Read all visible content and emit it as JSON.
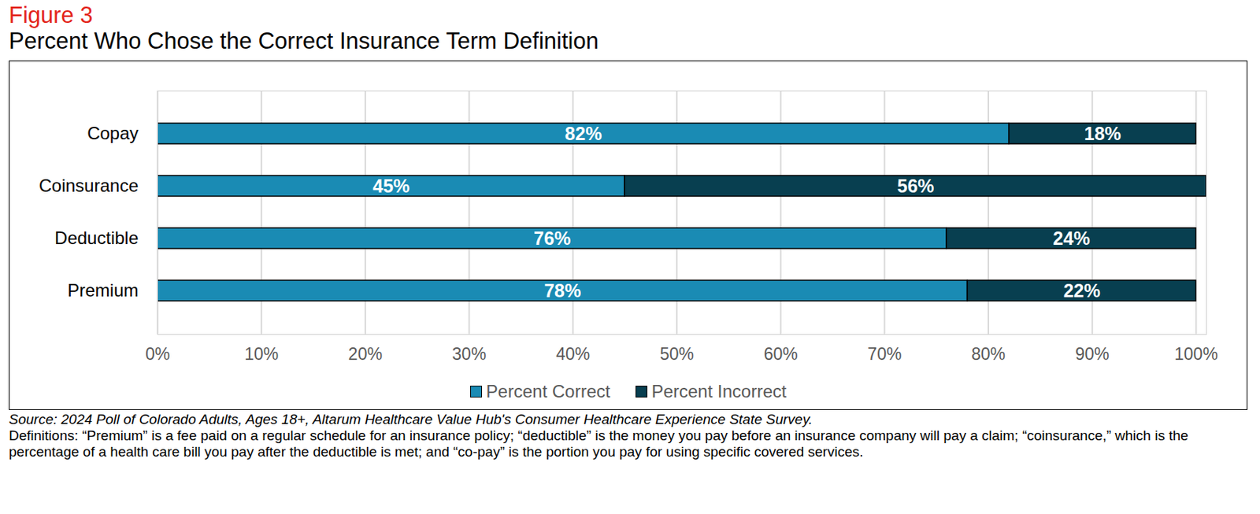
{
  "chart_data": {
    "type": "bar",
    "title": "Figure 3",
    "subtitle": "Percent Who Chose the Correct Insurance Term Definition",
    "orientation": "horizontal",
    "stacked": true,
    "data_labels": true,
    "grid": true,
    "legend": "bottom",
    "categories": [
      "Copay",
      "Coinsurance",
      "Deductible",
      "Premium"
    ],
    "series": [
      {
        "name": "Percent Correct",
        "color": "#1a8bb4",
        "values": [
          82,
          45,
          76,
          78
        ],
        "value_labels": [
          "82%",
          "45%",
          "76%",
          "78%"
        ]
      },
      {
        "name": "Percent Incorrect",
        "color": "#083f50",
        "values": [
          18,
          56,
          24,
          22
        ],
        "value_labels": [
          "18%",
          "56%",
          "24%",
          "22%"
        ]
      }
    ],
    "xlim": [
      0,
      101
    ],
    "xticks": [
      {
        "value": 0,
        "label": "0%"
      },
      {
        "value": 10,
        "label": "10%"
      },
      {
        "value": 20,
        "label": "20%"
      },
      {
        "value": 30,
        "label": "30%"
      },
      {
        "value": 40,
        "label": "40%"
      },
      {
        "value": 50,
        "label": "50%"
      },
      {
        "value": 60,
        "label": "60%"
      },
      {
        "value": 70,
        "label": "70%"
      },
      {
        "value": 80,
        "label": "80%"
      },
      {
        "value": 90,
        "label": "90%"
      },
      {
        "value": 100,
        "label": "100%"
      }
    ],
    "source": "Source: 2024 Poll of Colorado Adults, Ages 18+, Altarum Healthcare Value Hub's Consumer Healthcare Experience State Survey.",
    "caption": "Definitions: “Premium” is a fee paid on a regular schedule for an insurance policy; “deductible” is the money you pay before an insurance company will pay a claim; “coinsurance,” which is the percentage of a health care bill you pay after the deductible is met; and “co-pay” is the portion you pay for using specific covered services."
  }
}
